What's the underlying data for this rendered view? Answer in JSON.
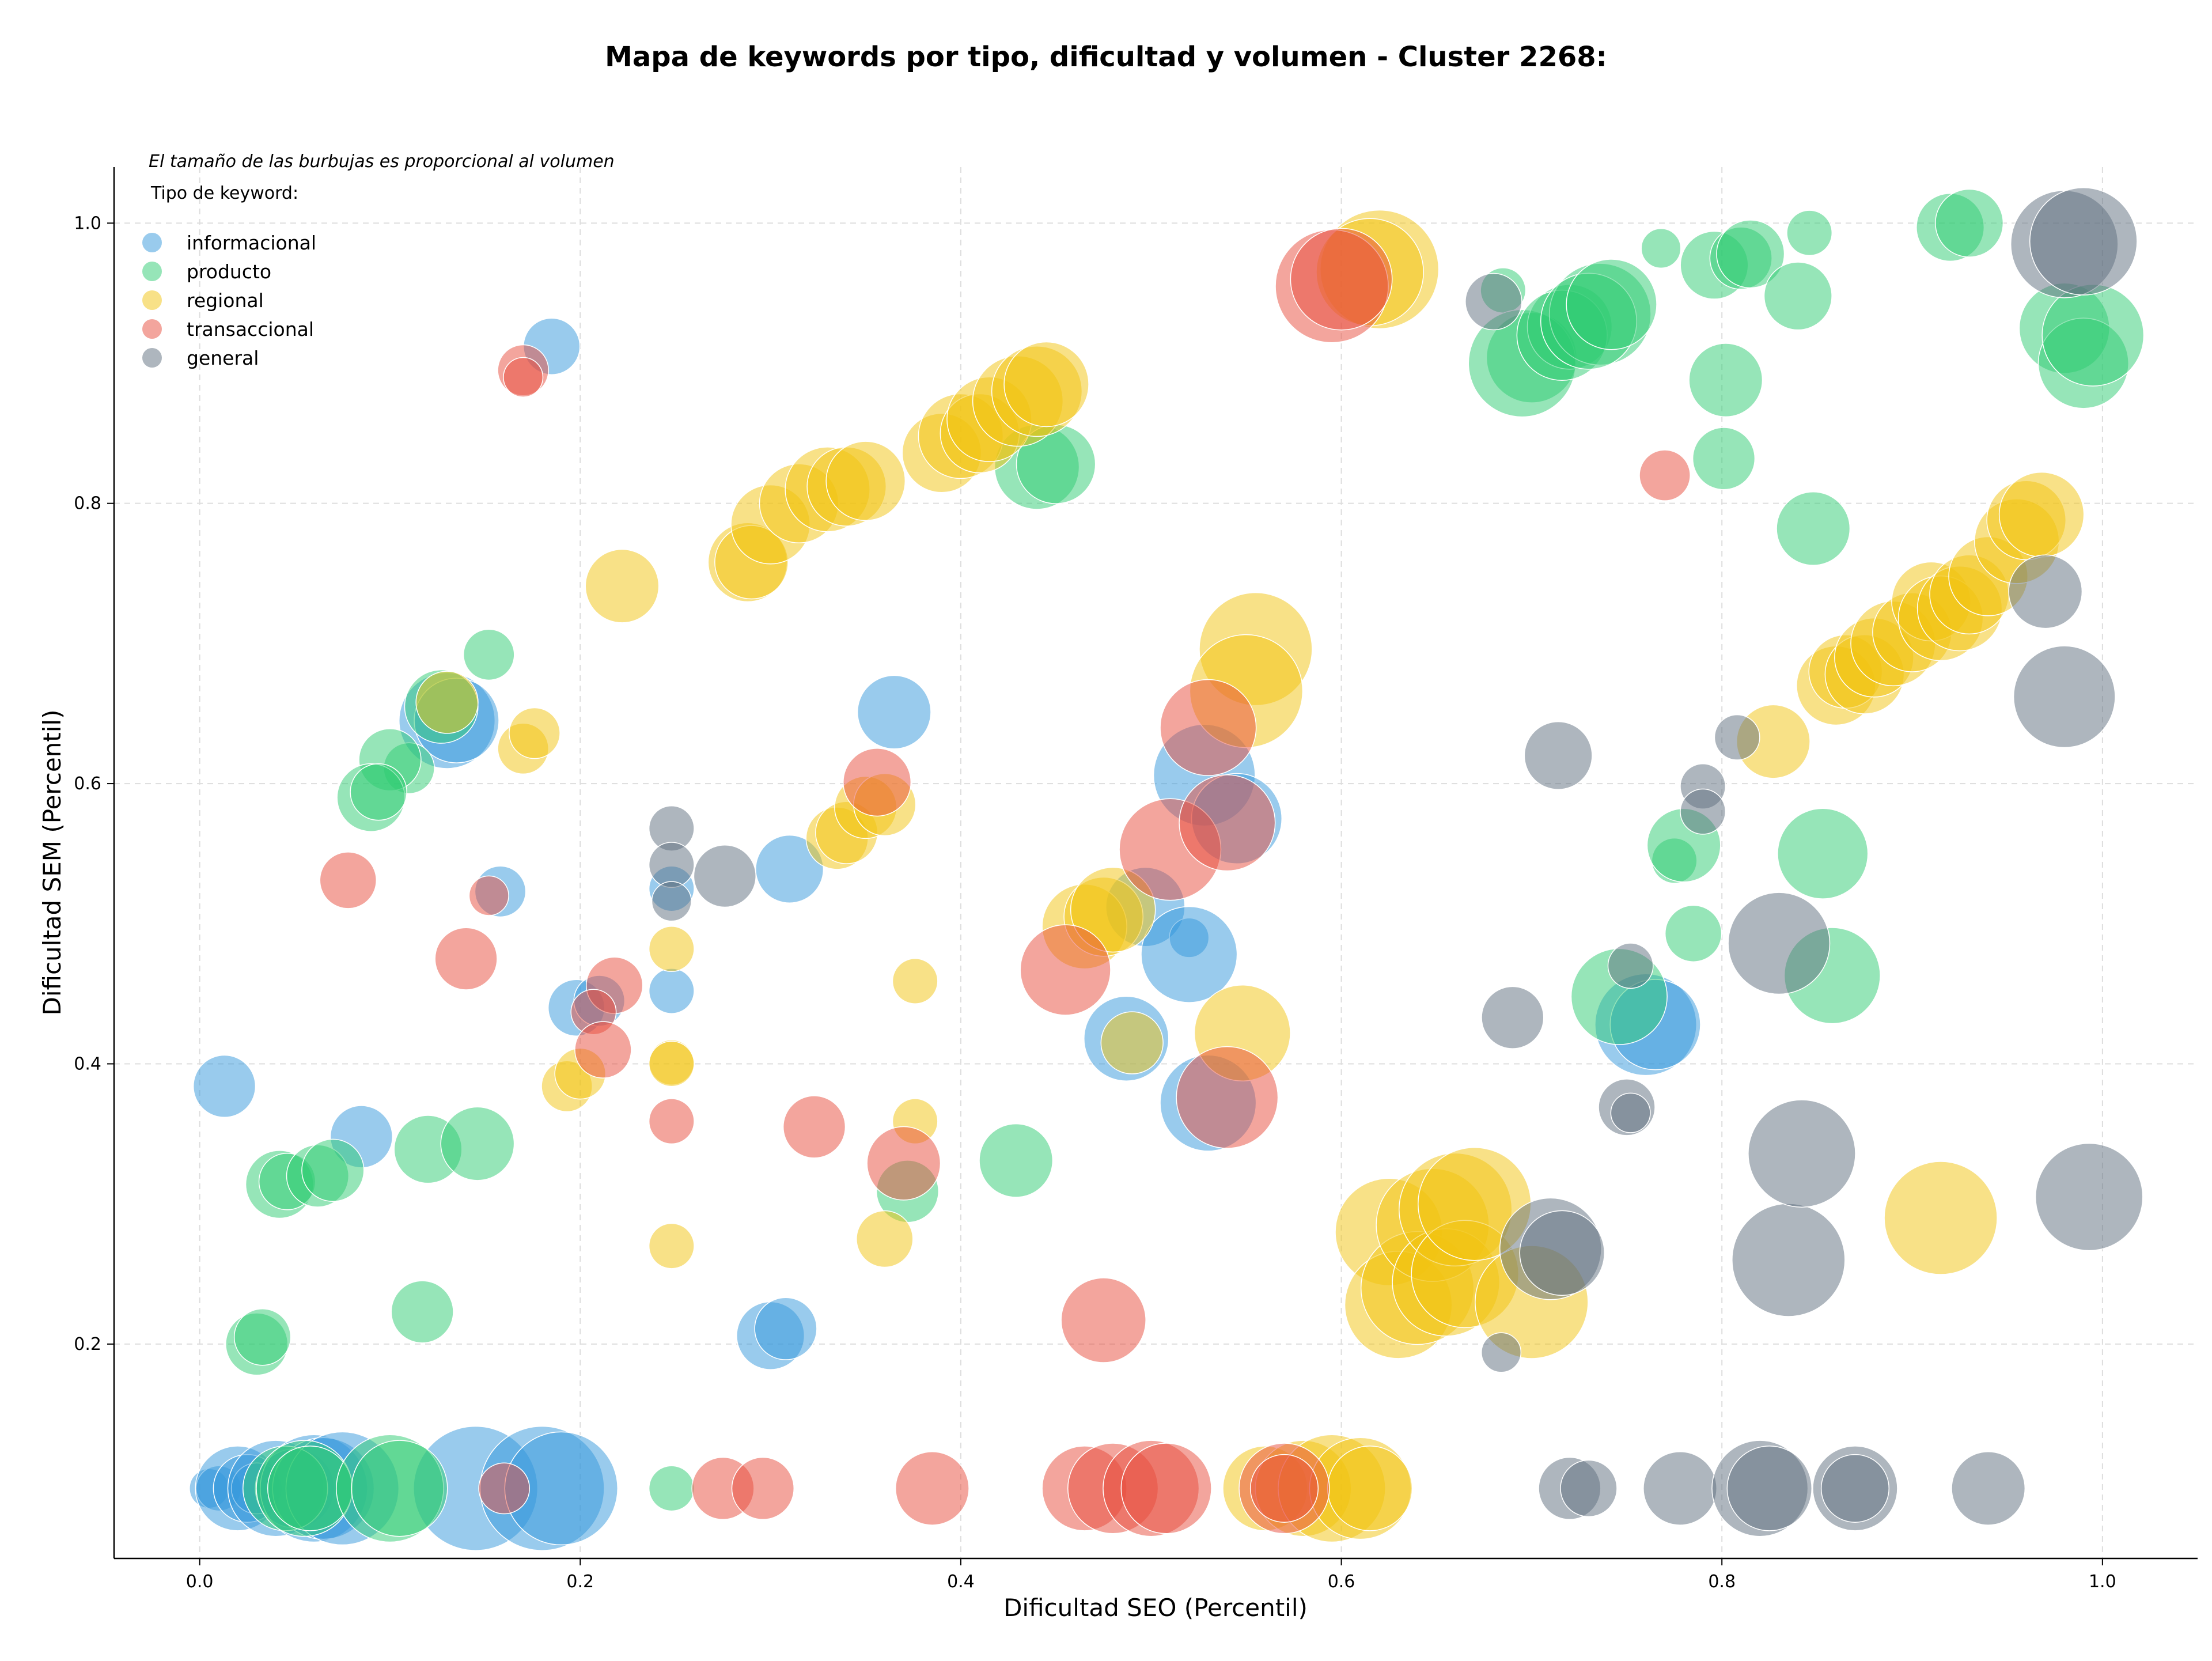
{
  "chart_data": {
    "type": "scatter",
    "title": "Mapa de keywords por tipo, dificultad y volumen - Cluster 2268:",
    "subtitle": "El tamaño de las burbujas es proporcional al volumen",
    "xlabel": "Dificultad SEO (Percentil)",
    "ylabel": "Dificultad SEM (Percentil)",
    "xlim": [
      -0.045,
      1.05
    ],
    "ylim": [
      0.047,
      1.04
    ],
    "xticks": [
      "0.0",
      "0.2",
      "0.4",
      "0.6",
      "0.8",
      "1.0"
    ],
    "yticks": [
      "0.2",
      "0.4",
      "0.6",
      "0.8",
      "1.0"
    ],
    "grid": true,
    "legend": {
      "title": "Tipo de keyword:",
      "position": "top-left"
    },
    "series": [
      {
        "name": "informacional",
        "color": "#3498db",
        "points": [
          [
            0.005,
            0.097,
            14
          ],
          [
            0.01,
            0.097,
            16
          ],
          [
            0.02,
            0.097,
            30
          ],
          [
            0.025,
            0.097,
            24
          ],
          [
            0.03,
            0.097,
            18
          ],
          [
            0.04,
            0.097,
            34
          ],
          [
            0.05,
            0.097,
            28
          ],
          [
            0.06,
            0.097,
            38
          ],
          [
            0.065,
            0.097,
            36
          ],
          [
            0.075,
            0.097,
            40
          ],
          [
            0.145,
            0.097,
            44
          ],
          [
            0.18,
            0.097,
            44
          ],
          [
            0.19,
            0.097,
            40
          ],
          [
            0.013,
            0.384,
            22
          ],
          [
            0.085,
            0.348,
            22
          ],
          [
            0.185,
            0.912,
            20
          ],
          [
            0.13,
            0.645,
            34
          ],
          [
            0.135,
            0.645,
            30
          ],
          [
            0.158,
            0.523,
            18
          ],
          [
            0.198,
            0.44,
            20
          ],
          [
            0.21,
            0.445,
            18
          ],
          [
            0.248,
            0.525,
            16
          ],
          [
            0.248,
            0.452,
            16
          ],
          [
            0.31,
            0.539,
            24
          ],
          [
            0.365,
            0.651,
            26
          ],
          [
            0.3,
            0.206,
            24
          ],
          [
            0.308,
            0.211,
            22
          ],
          [
            0.487,
            0.418,
            30
          ],
          [
            0.497,
            0.512,
            28
          ],
          [
            0.52,
            0.49,
            14
          ],
          [
            0.52,
            0.478,
            34
          ],
          [
            0.528,
            0.606,
            36
          ],
          [
            0.53,
            0.372,
            34
          ],
          [
            0.545,
            0.575,
            32
          ],
          [
            0.76,
            0.428,
            36
          ],
          [
            0.765,
            0.428,
            32
          ]
        ]
      },
      {
        "name": "producto",
        "color": "#2ecc71",
        "points": [
          [
            0.045,
            0.097,
            30
          ],
          [
            0.055,
            0.097,
            34
          ],
          [
            0.058,
            0.097,
            30
          ],
          [
            0.1,
            0.097,
            38
          ],
          [
            0.105,
            0.097,
            34
          ],
          [
            0.248,
            0.097,
            16
          ],
          [
            0.03,
            0.2,
            22
          ],
          [
            0.033,
            0.205,
            20
          ],
          [
            0.042,
            0.314,
            24
          ],
          [
            0.046,
            0.316,
            20
          ],
          [
            0.062,
            0.32,
            22
          ],
          [
            0.07,
            0.324,
            22
          ],
          [
            0.12,
            0.339,
            24
          ],
          [
            0.146,
            0.343,
            26
          ],
          [
            0.11,
            0.611,
            18
          ],
          [
            0.1,
            0.617,
            22
          ],
          [
            0.09,
            0.59,
            24
          ],
          [
            0.094,
            0.594,
            20
          ],
          [
            0.152,
            0.692,
            18
          ],
          [
            0.127,
            0.655,
            26
          ],
          [
            0.117,
            0.223,
            22
          ],
          [
            0.372,
            0.309,
            22
          ],
          [
            0.429,
            0.331,
            26
          ],
          [
            0.44,
            0.826,
            30
          ],
          [
            0.45,
            0.828,
            28
          ],
          [
            0.685,
            0.952,
            16
          ],
          [
            0.7,
            0.904,
            32
          ],
          [
            0.695,
            0.9,
            38
          ],
          [
            0.72,
            0.926,
            30
          ],
          [
            0.716,
            0.92,
            32
          ],
          [
            0.736,
            0.935,
            36
          ],
          [
            0.73,
            0.93,
            34
          ],
          [
            0.742,
            0.942,
            32
          ],
          [
            0.768,
            0.982,
            14
          ],
          [
            0.796,
            0.97,
            24
          ],
          [
            0.81,
            0.975,
            22
          ],
          [
            0.815,
            0.978,
            24
          ],
          [
            0.846,
            0.993,
            16
          ],
          [
            0.84,
            0.948,
            24
          ],
          [
            0.802,
            0.888,
            26
          ],
          [
            0.801,
            0.832,
            22
          ],
          [
            0.848,
            0.782,
            26
          ],
          [
            0.775,
            0.545,
            16
          ],
          [
            0.78,
            0.556,
            26
          ],
          [
            0.785,
            0.493,
            20
          ],
          [
            0.746,
            0.448,
            34
          ],
          [
            0.853,
            0.55,
            32
          ],
          [
            0.858,
            0.463,
            34
          ],
          [
            0.92,
            0.997,
            24
          ],
          [
            0.93,
            1.0,
            24
          ],
          [
            0.98,
            0.925,
            32
          ],
          [
            0.99,
            0.9,
            32
          ],
          [
            0.995,
            0.92,
            36
          ]
        ]
      },
      {
        "name": "regional",
        "color": "#f1c40f",
        "points": [
          [
            0.13,
            0.658,
            22
          ],
          [
            0.17,
            0.625,
            18
          ],
          [
            0.176,
            0.636,
            18
          ],
          [
            0.222,
            0.741,
            26
          ],
          [
            0.193,
            0.384,
            18
          ],
          [
            0.2,
            0.393,
            18
          ],
          [
            0.248,
            0.401,
            16
          ],
          [
            0.248,
            0.4,
            16
          ],
          [
            0.248,
            0.482,
            16
          ],
          [
            0.248,
            0.27,
            16
          ],
          [
            0.288,
            0.758,
            28
          ],
          [
            0.29,
            0.758,
            26
          ],
          [
            0.3,
            0.785,
            28
          ],
          [
            0.315,
            0.8,
            28
          ],
          [
            0.33,
            0.81,
            30
          ],
          [
            0.34,
            0.812,
            28
          ],
          [
            0.35,
            0.816,
            28
          ],
          [
            0.335,
            0.561,
            22
          ],
          [
            0.34,
            0.565,
            22
          ],
          [
            0.35,
            0.583,
            22
          ],
          [
            0.36,
            0.585,
            22
          ],
          [
            0.376,
            0.459,
            16
          ],
          [
            0.376,
            0.359,
            16
          ],
          [
            0.36,
            0.275,
            20
          ],
          [
            0.39,
            0.836,
            28
          ],
          [
            0.4,
            0.848,
            30
          ],
          [
            0.41,
            0.85,
            28
          ],
          [
            0.415,
            0.86,
            30
          ],
          [
            0.43,
            0.873,
            32
          ],
          [
            0.44,
            0.88,
            32
          ],
          [
            0.445,
            0.885,
            30
          ],
          [
            0.465,
            0.498,
            30
          ],
          [
            0.475,
            0.505,
            28
          ],
          [
            0.48,
            0.51,
            30
          ],
          [
            0.49,
            0.415,
            22
          ],
          [
            0.555,
            0.696,
            40
          ],
          [
            0.55,
            0.666,
            40
          ],
          [
            0.548,
            0.422,
            34
          ],
          [
            0.56,
            0.097,
            30
          ],
          [
            0.58,
            0.097,
            34
          ],
          [
            0.595,
            0.097,
            38
          ],
          [
            0.61,
            0.097,
            36
          ],
          [
            0.615,
            0.097,
            30
          ],
          [
            0.62,
            0.967,
            42
          ],
          [
            0.615,
            0.965,
            38
          ],
          [
            0.625,
            0.28,
            38
          ],
          [
            0.63,
            0.228,
            38
          ],
          [
            0.64,
            0.24,
            40
          ],
          [
            0.648,
            0.285,
            40
          ],
          [
            0.655,
            0.244,
            38
          ],
          [
            0.66,
            0.296,
            40
          ],
          [
            0.665,
            0.25,
            38
          ],
          [
            0.67,
            0.3,
            40
          ],
          [
            0.7,
            0.23,
            40
          ],
          [
            0.827,
            0.63,
            26
          ],
          [
            0.86,
            0.67,
            28
          ],
          [
            0.865,
            0.68,
            26
          ],
          [
            0.875,
            0.678,
            28
          ],
          [
            0.88,
            0.69,
            28
          ],
          [
            0.89,
            0.7,
            30
          ],
          [
            0.9,
            0.708,
            28
          ],
          [
            0.91,
            0.73,
            28
          ],
          [
            0.915,
            0.718,
            30
          ],
          [
            0.925,
            0.725,
            30
          ],
          [
            0.93,
            0.735,
            28
          ],
          [
            0.94,
            0.748,
            28
          ],
          [
            0.955,
            0.773,
            30
          ],
          [
            0.96,
            0.788,
            28
          ],
          [
            0.968,
            0.792,
            30
          ],
          [
            0.915,
            0.29,
            40
          ]
        ]
      },
      {
        "name": "transaccional",
        "color": "#e74c3c",
        "points": [
          [
            0.16,
            0.097,
            18
          ],
          [
            0.275,
            0.097,
            22
          ],
          [
            0.296,
            0.097,
            22
          ],
          [
            0.385,
            0.097,
            26
          ],
          [
            0.465,
            0.097,
            30
          ],
          [
            0.48,
            0.097,
            32
          ],
          [
            0.5,
            0.097,
            34
          ],
          [
            0.508,
            0.097,
            32
          ],
          [
            0.57,
            0.097,
            32
          ],
          [
            0.57,
            0.097,
            24
          ],
          [
            0.17,
            0.895,
            18
          ],
          [
            0.17,
            0.89,
            14
          ],
          [
            0.078,
            0.531,
            20
          ],
          [
            0.152,
            0.52,
            14
          ],
          [
            0.14,
            0.475,
            22
          ],
          [
            0.218,
            0.456,
            20
          ],
          [
            0.207,
            0.437,
            16
          ],
          [
            0.212,
            0.41,
            20
          ],
          [
            0.248,
            0.359,
            16
          ],
          [
            0.323,
            0.355,
            22
          ],
          [
            0.37,
            0.329,
            26
          ],
          [
            0.356,
            0.601,
            24
          ],
          [
            0.455,
            0.467,
            32
          ],
          [
            0.53,
            0.64,
            34
          ],
          [
            0.51,
            0.553,
            36
          ],
          [
            0.54,
            0.572,
            34
          ],
          [
            0.54,
            0.376,
            36
          ],
          [
            0.595,
            0.955,
            40
          ],
          [
            0.6,
            0.96,
            36
          ],
          [
            0.77,
            0.82,
            18
          ],
          [
            0.475,
            0.217,
            30
          ]
        ]
      },
      {
        "name": "general",
        "color": "#5d6d7e",
        "points": [
          [
            0.248,
            0.568,
            16
          ],
          [
            0.248,
            0.542,
            16
          ],
          [
            0.248,
            0.516,
            14
          ],
          [
            0.276,
            0.534,
            22
          ],
          [
            0.68,
            0.944,
            20
          ],
          [
            0.684,
            0.194,
            14
          ],
          [
            0.69,
            0.433,
            22
          ],
          [
            0.714,
            0.62,
            24
          ],
          [
            0.71,
            0.268,
            36
          ],
          [
            0.716,
            0.265,
            30
          ],
          [
            0.72,
            0.097,
            22
          ],
          [
            0.73,
            0.097,
            20
          ],
          [
            0.75,
            0.369,
            20
          ],
          [
            0.752,
            0.365,
            14
          ],
          [
            0.752,
            0.47,
            16
          ],
          [
            0.778,
            0.097,
            26
          ],
          [
            0.808,
            0.633,
            16
          ],
          [
            0.79,
            0.598,
            16
          ],
          [
            0.79,
            0.58,
            16
          ],
          [
            0.82,
            0.097,
            34
          ],
          [
            0.825,
            0.097,
            30
          ],
          [
            0.83,
            0.486,
            36
          ],
          [
            0.835,
            0.26,
            40
          ],
          [
            0.842,
            0.336,
            38
          ],
          [
            0.87,
            0.097,
            30
          ],
          [
            0.87,
            0.097,
            24
          ],
          [
            0.94,
            0.097,
            26
          ],
          [
            0.97,
            0.737,
            26
          ],
          [
            0.98,
            0.662,
            36
          ],
          [
            0.98,
            0.985,
            38
          ],
          [
            0.99,
            0.987,
            38
          ],
          [
            0.993,
            0.305,
            38
          ]
        ]
      }
    ]
  }
}
